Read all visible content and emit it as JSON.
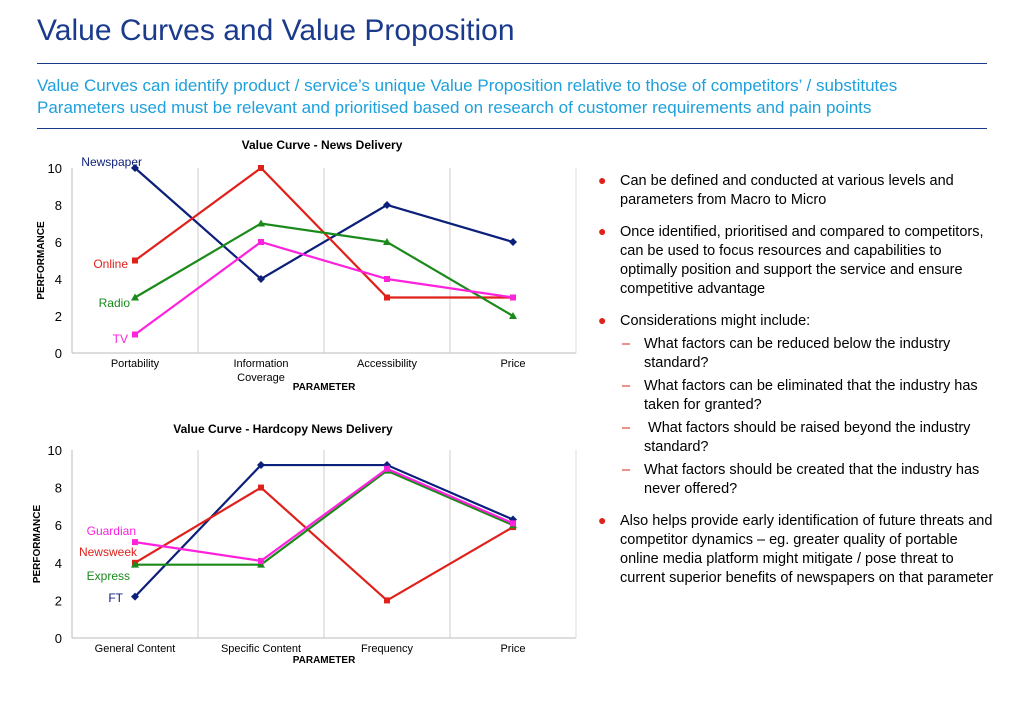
{
  "title": "Value Curves and Value Proposition",
  "subtitle_lines": [
    "Value Curves can identify product / service’s unique Value Proposition relative to those of competitors’ / substitutes",
    "Parameters used must be relevant and prioritised based on research of customer requirements and pain points"
  ],
  "colors": {
    "title": "#1a3a8c",
    "subtitle": "#1ea0dc",
    "bullet": "#e0201b"
  },
  "chart_data": [
    {
      "type": "line",
      "title": "Value Curve - News Delivery",
      "xlabel": "PARAMETER",
      "ylabel": "PERFORMANCE",
      "categories": [
        "Portability",
        "Information Coverage",
        "Accessibility",
        "Price"
      ],
      "ylim": [
        0,
        10
      ],
      "yticks": [
        0,
        2,
        4,
        6,
        8,
        10
      ],
      "grid": "vertical",
      "series": [
        {
          "name": "Newspaper",
          "color": "#0c1f7a",
          "marker": "diamond",
          "values": [
            10,
            4,
            8,
            6
          ]
        },
        {
          "name": "Online",
          "color": "#e0201b",
          "marker": "square",
          "values": [
            5,
            10,
            3,
            3
          ]
        },
        {
          "name": "Radio",
          "color": "#1a8a1a",
          "marker": "triangle",
          "values": [
            3,
            7,
            6,
            2
          ]
        },
        {
          "name": "TV",
          "color": "#ff22dd",
          "marker": "square",
          "values": [
            1,
            6,
            4,
            3
          ]
        }
      ]
    },
    {
      "type": "line",
      "title": "Value Curve - Hardcopy News Delivery",
      "xlabel": "PARAMETER",
      "ylabel": "PERFORMANCE",
      "categories": [
        "General Content",
        "Specific Content",
        "Frequency",
        "Price"
      ],
      "ylim": [
        0,
        10
      ],
      "yticks": [
        0,
        2,
        4,
        6,
        8,
        10
      ],
      "grid": "vertical",
      "series": [
        {
          "name": "FT",
          "color": "#0c1f7a",
          "marker": "diamond",
          "values": [
            2.2,
            9.2,
            9.2,
            6.3
          ]
        },
        {
          "name": "Newsweek",
          "color": "#e0201b",
          "marker": "square",
          "values": [
            4,
            8,
            2,
            5.9
          ]
        },
        {
          "name": "Express",
          "color": "#1a8a1a",
          "marker": "triangle",
          "values": [
            3.9,
            3.9,
            8.9,
            6
          ]
        },
        {
          "name": "Guardian",
          "color": "#ff22dd",
          "marker": "square",
          "values": [
            5.1,
            4.1,
            9,
            6.1
          ]
        }
      ]
    }
  ],
  "bullets": [
    {
      "text": "Can be defined and conducted at various levels and parameters from Macro to Micro",
      "subs": []
    },
    {
      "text": "Once identified, prioritised and compared to competitors, can be used to focus resources and capabilities to optimally position and support the service and ensure competitive advantage",
      "subs": []
    },
    {
      "text": "Considerations might include:",
      "subs": [
        "What factors can be reduced below the industry standard?",
        "What factors can be eliminated that the industry has taken for granted?",
        " What factors should be raised beyond the industry standard?",
        "What factors should be created that the industry has never offered?"
      ]
    },
    {
      "text": "Also helps provide early identification of future threats and competitor dynamics – eg. greater quality of portable online media platform might mitigate / pose threat to current superior benefits of newspapers on that parameter",
      "subs": []
    }
  ]
}
